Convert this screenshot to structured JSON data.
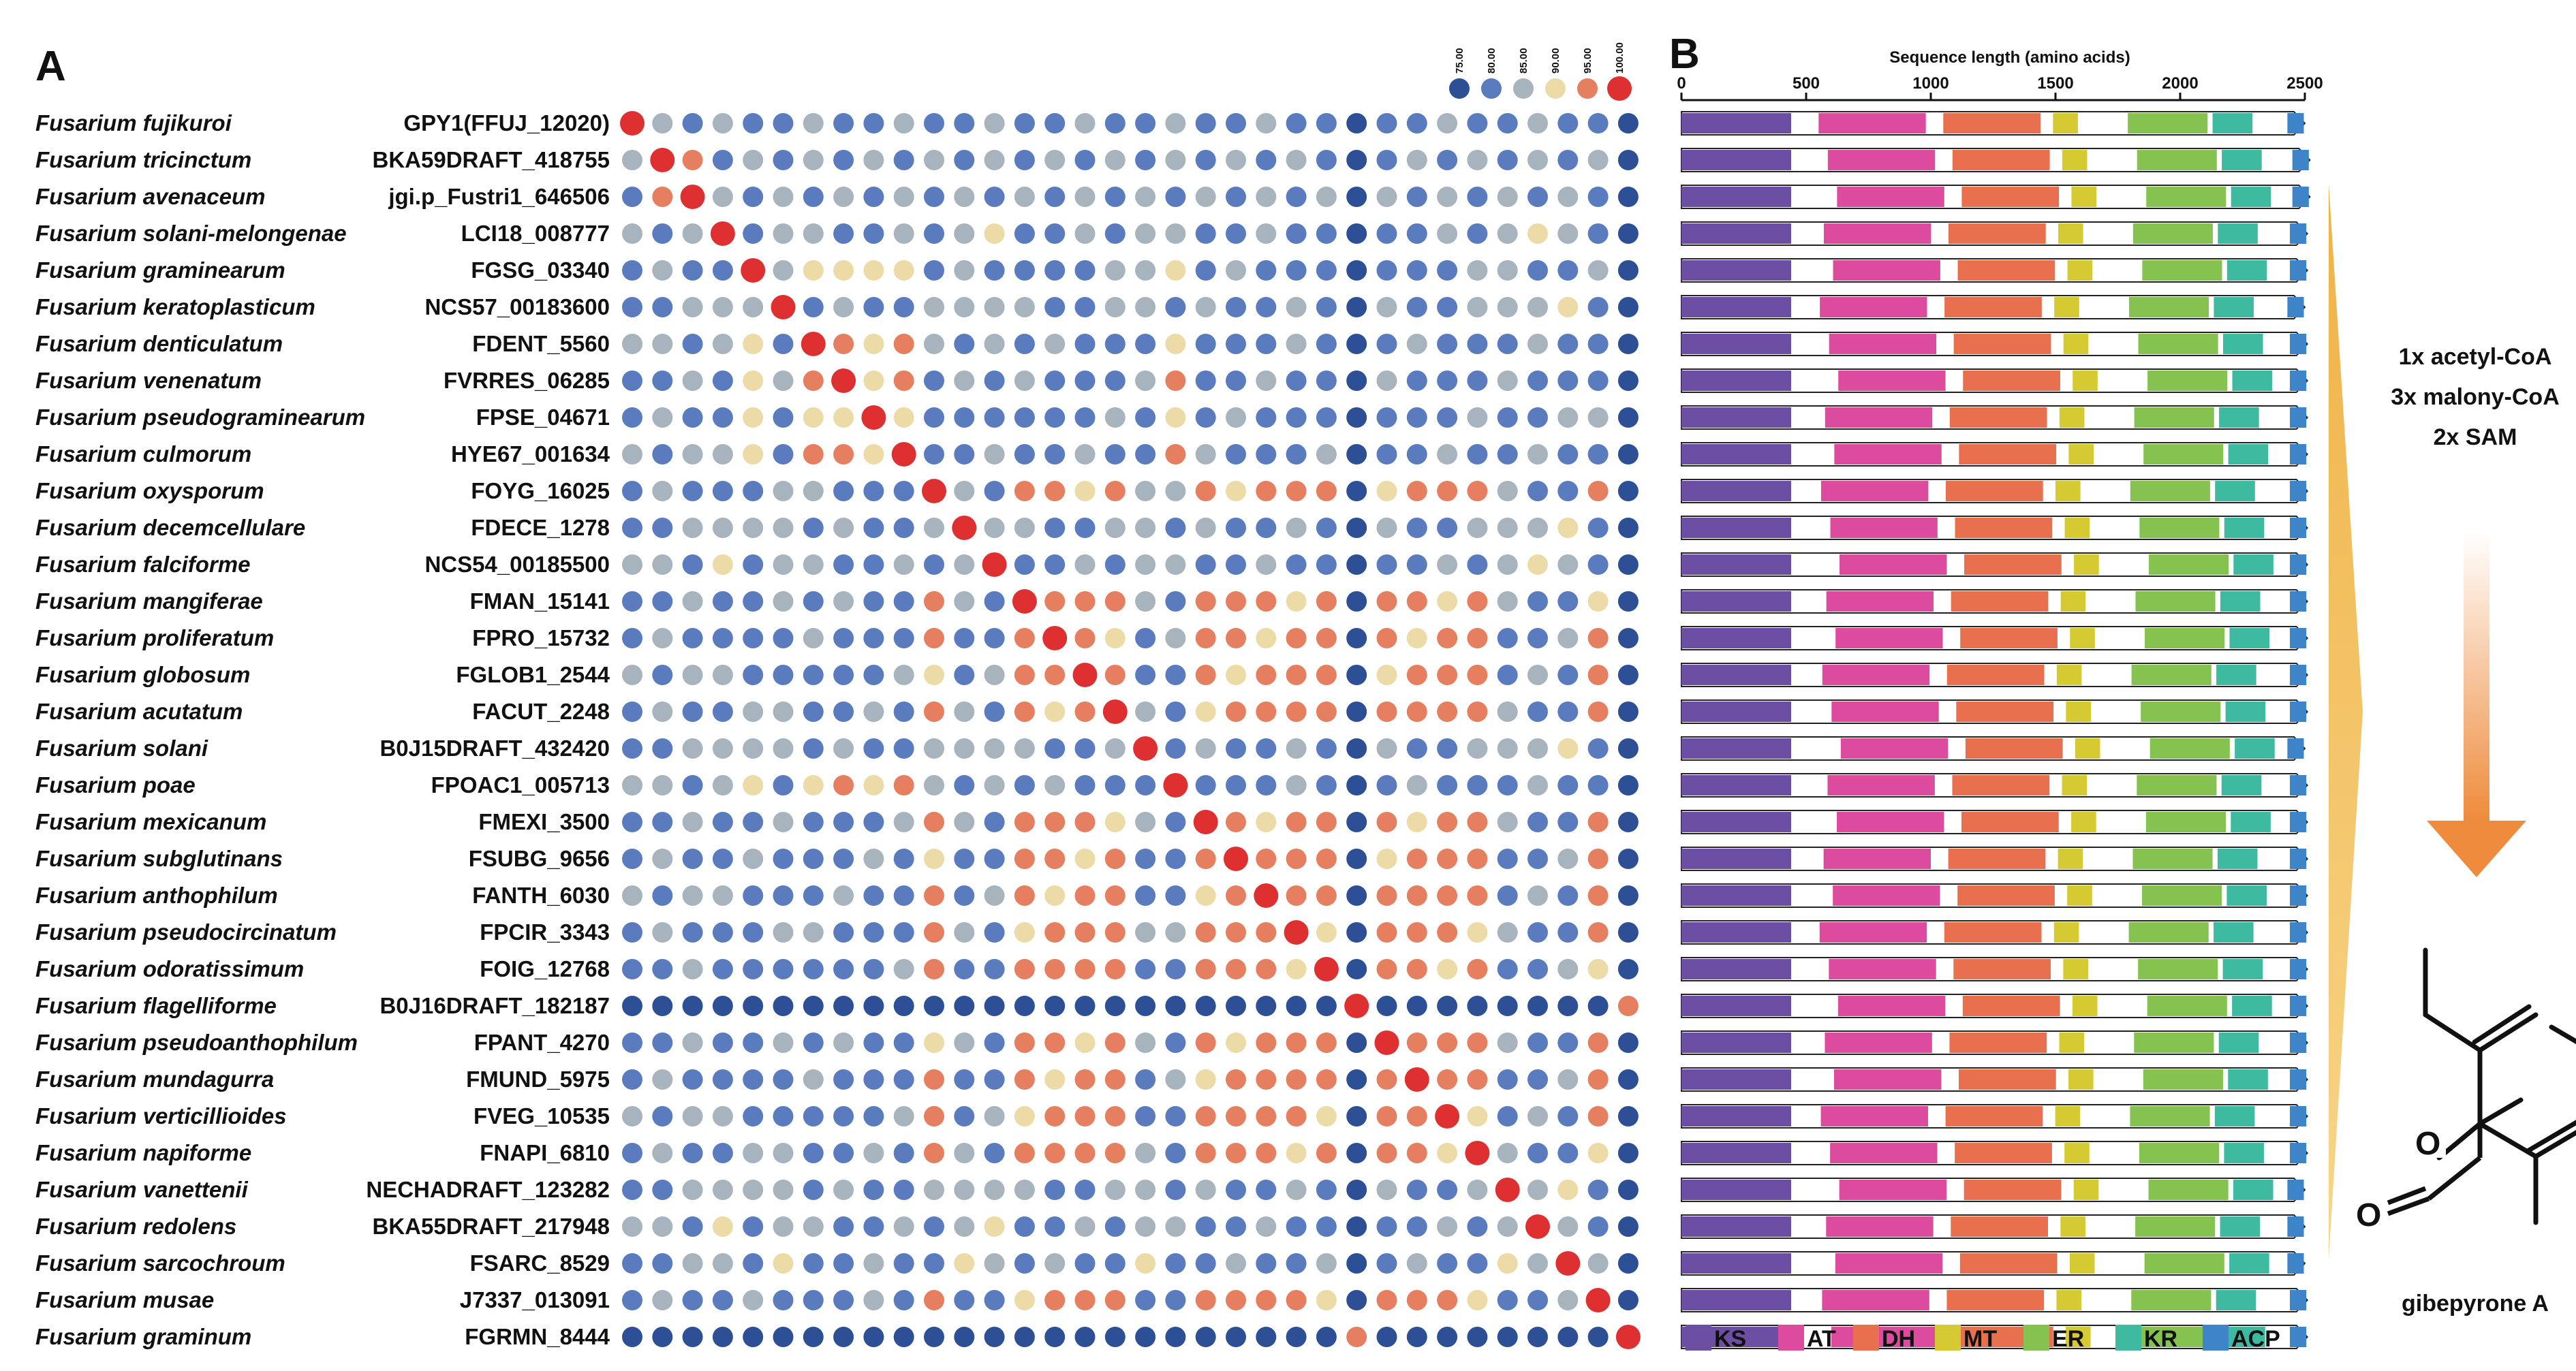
{
  "panel_a": {
    "label": "A",
    "heatmap_legend": {
      "values": [
        "75.00",
        "80.00",
        "85.00",
        "90.00",
        "95.00",
        "100.00"
      ],
      "colors": [
        "#2d4f96",
        "#5a7cbf",
        "#a7b4bd",
        "#ecdba6",
        "#e57f5f",
        "#de3030"
      ]
    }
  },
  "panel_b": {
    "label": "B",
    "axis_title": "Sequence length (amino acids)",
    "ticks": [
      "0",
      "500",
      "1000",
      "1500",
      "2000",
      "2500"
    ],
    "axis_range": [
      0,
      2500
    ]
  },
  "domains": [
    {
      "name": "KS",
      "color": "#6c4ea3"
    },
    {
      "name": "AT",
      "color": "#dd4b9e"
    },
    {
      "name": "DH",
      "color": "#e9704f"
    },
    {
      "name": "MT",
      "color": "#d6ca33"
    },
    {
      "name": "ER",
      "color": "#86c24f"
    },
    {
      "name": "KR",
      "color": "#3ebaa0"
    },
    {
      "name": "ACP",
      "color": "#3d84c8"
    }
  ],
  "proteins": [
    {
      "species": "Fusarium fujikuroi",
      "gene": "GPY1(FFUJ_12020)",
      "length": 2500
    },
    {
      "species": "Fusarium tricinctum",
      "gene": "BKA59DRAFT_418755",
      "length": 2520
    },
    {
      "species": "Fusarium avenaceum",
      "gene": "jgi.p_Fustri1_646506",
      "length": 2520
    },
    {
      "species": "Fusarium solani-melongenae",
      "gene": "LCI18_008777",
      "length": 2510
    },
    {
      "species": "Fusarium graminearum",
      "gene": "FGSG_03340",
      "length": 2510
    },
    {
      "species": "Fusarium keratoplasticum",
      "gene": "NCS57_00183600",
      "length": 2500
    },
    {
      "species": "Fusarium denticulatum",
      "gene": "FDENT_5560",
      "length": 2510
    },
    {
      "species": "Fusarium venenatum",
      "gene": "FVRRES_06285",
      "length": 2510
    },
    {
      "species": "Fusarium pseudograminearum",
      "gene": "FPSE_04671",
      "length": 2510
    },
    {
      "species": "Fusarium culmorum",
      "gene": "HYE67_001634",
      "length": 2510
    },
    {
      "species": "Fusarium oxysporum",
      "gene": "FOYG_16025",
      "length": 2510
    },
    {
      "species": "Fusarium decemcellulare",
      "gene": "FDECE_1278",
      "length": 2510
    },
    {
      "species": "Fusarium falciforme",
      "gene": "NCS54_00185500",
      "length": 2510
    },
    {
      "species": "Fusarium mangiferae",
      "gene": "FMAN_15141",
      "length": 2510
    },
    {
      "species": "Fusarium proliferatum",
      "gene": "FPRO_15732",
      "length": 2510
    },
    {
      "species": "Fusarium globosum",
      "gene": "FGLOB1_2544",
      "length": 2510
    },
    {
      "species": "Fusarium acutatum",
      "gene": "FACUT_2248",
      "length": 2510
    },
    {
      "species": "Fusarium solani",
      "gene": "B0J15DRAFT_432420",
      "length": 2500
    },
    {
      "species": "Fusarium poae",
      "gene": "FPOAC1_005713",
      "length": 2510
    },
    {
      "species": "Fusarium mexicanum",
      "gene": "FMEXI_3500",
      "length": 2510
    },
    {
      "species": "Fusarium subglutinans",
      "gene": "FSUBG_9656",
      "length": 2510
    },
    {
      "species": "Fusarium anthophilum",
      "gene": "FANTH_6030",
      "length": 2510
    },
    {
      "species": "Fusarium pseudocircinatum",
      "gene": "FPCIR_3343",
      "length": 2510
    },
    {
      "species": "Fusarium odoratissimum",
      "gene": "FOIG_12768",
      "length": 2510
    },
    {
      "species": "Fusarium flagelliforme",
      "gene": "B0J16DRAFT_182187",
      "length": 2510
    },
    {
      "species": "Fusarium pseudoanthophilum",
      "gene": "FPANT_4270",
      "length": 2510
    },
    {
      "species": "Fusarium mundagurra",
      "gene": "FMUND_5975",
      "length": 2510
    },
    {
      "species": "Fusarium verticillioides",
      "gene": "FVEG_10535",
      "length": 2510
    },
    {
      "species": "Fusarium napiforme",
      "gene": "FNAPI_6810",
      "length": 2510
    },
    {
      "species": "Fusarium vanettenii",
      "gene": "NECHADRAFT_123282",
      "length": 2500
    },
    {
      "species": "Fusarium redolens",
      "gene": "BKA55DRAFT_217948",
      "length": 2500
    },
    {
      "species": "Fusarium sarcochroum",
      "gene": "FSARC_8529",
      "length": 2500
    },
    {
      "species": "Fusarium musae",
      "gene": "J7337_013091",
      "length": 2510
    },
    {
      "species": "Fusarium graminum",
      "gene": "FGRMN_8444",
      "length": 2510
    }
  ],
  "pathway": {
    "substrates": [
      "1x acetyl-CoA",
      "3x malony-CoA",
      "2x SAM"
    ],
    "product": "gibepyrone A",
    "ring_atoms": [
      "O",
      "O"
    ]
  }
}
